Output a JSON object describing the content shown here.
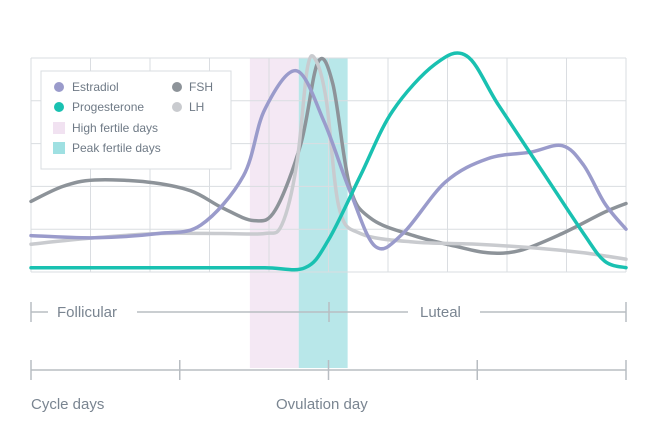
{
  "chart_data": {
    "type": "line",
    "title": "",
    "xlabel": "",
    "ylabel": "",
    "x_range": [
      0,
      28
    ],
    "y_range": [
      0,
      100
    ],
    "grid": true,
    "legend_position": "top-left",
    "series": [
      {
        "name": "Estradiol",
        "color": "#9a9bcb",
        "points": [
          [
            0,
            17
          ],
          [
            3,
            16
          ],
          [
            6,
            18
          ],
          [
            8,
            22
          ],
          [
            10,
            45
          ],
          [
            11,
            76
          ],
          [
            12.5,
            94
          ],
          [
            13.8,
            70
          ],
          [
            15,
            38
          ],
          [
            16.2,
            12
          ],
          [
            17.5,
            18
          ],
          [
            19.5,
            42
          ],
          [
            21.5,
            53
          ],
          [
            23.5,
            56
          ],
          [
            25,
            59
          ],
          [
            26,
            50
          ],
          [
            27,
            32
          ],
          [
            28,
            20
          ]
        ]
      },
      {
        "name": "Progesterone",
        "color": "#19c1b1",
        "points": [
          [
            0,
            2
          ],
          [
            8,
            2
          ],
          [
            11,
            2
          ],
          [
            12.9,
            2
          ],
          [
            14,
            15
          ],
          [
            15.5,
            45
          ],
          [
            17,
            75
          ],
          [
            19,
            97
          ],
          [
            20.5,
            101
          ],
          [
            22,
            78
          ],
          [
            24,
            48
          ],
          [
            26,
            18
          ],
          [
            27,
            5
          ],
          [
            28,
            2
          ]
        ]
      },
      {
        "name": "FSH",
        "color": "#8d9399",
        "points": [
          [
            0,
            33
          ],
          [
            1.5,
            40
          ],
          [
            3,
            43
          ],
          [
            5.5,
            42
          ],
          [
            7.5,
            38
          ],
          [
            9,
            30
          ],
          [
            10.5,
            24
          ],
          [
            11.5,
            29
          ],
          [
            12.7,
            60
          ],
          [
            13.5,
            98
          ],
          [
            14.2,
            88
          ],
          [
            15,
            40
          ],
          [
            16,
            25
          ],
          [
            18,
            17
          ],
          [
            20,
            12
          ],
          [
            21.5,
            9
          ],
          [
            23,
            10
          ],
          [
            25,
            18
          ],
          [
            27,
            28
          ],
          [
            28,
            32
          ]
        ]
      },
      {
        "name": "LH",
        "color": "#c9cbcf",
        "points": [
          [
            0,
            13
          ],
          [
            3,
            16
          ],
          [
            6,
            18
          ],
          [
            9,
            18
          ],
          [
            11,
            18
          ],
          [
            11.8,
            22
          ],
          [
            12.5,
            50
          ],
          [
            13,
            95
          ],
          [
            13.4,
            99
          ],
          [
            13.9,
            80
          ],
          [
            14.5,
            30
          ],
          [
            15.5,
            18
          ],
          [
            18,
            14
          ],
          [
            21,
            13
          ],
          [
            24,
            11
          ],
          [
            26,
            9
          ],
          [
            28,
            6
          ]
        ]
      }
    ],
    "shaded_regions": [
      {
        "name": "High fertile days",
        "color": "#f4e8f4",
        "range": [
          10.3,
          12.6
        ]
      },
      {
        "name": "Peak fertile days",
        "color": "#b8e7e9",
        "range": [
          12.6,
          14.9
        ]
      }
    ],
    "phases": [
      {
        "label": "Follicular",
        "range": [
          0,
          14
        ]
      },
      {
        "label": "Luteal",
        "range": [
          14,
          28
        ]
      }
    ],
    "x_ticks": [
      0,
      7,
      14,
      21,
      28
    ],
    "x_axis_labels": [
      "Cycle days",
      "Ovulation day"
    ]
  }
}
